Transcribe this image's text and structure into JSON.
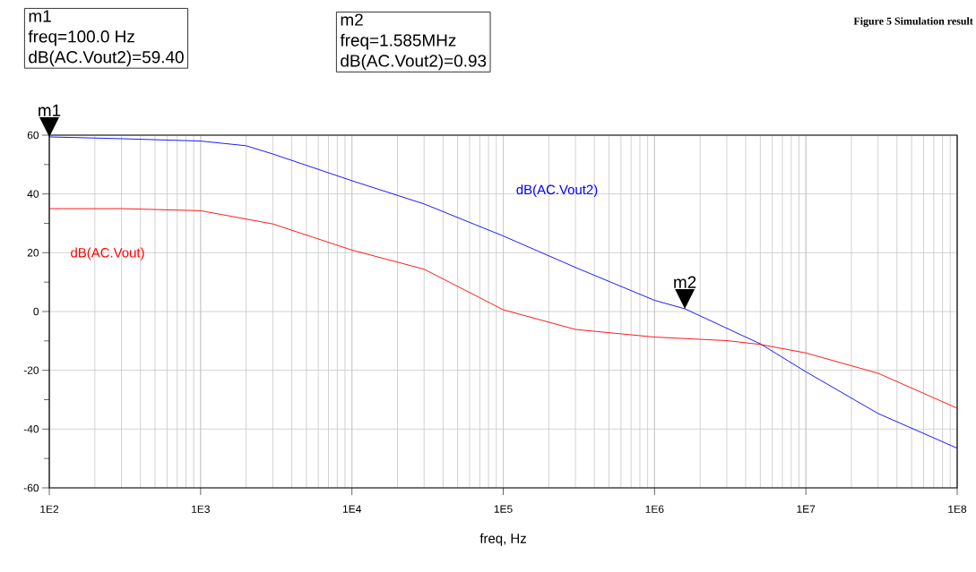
{
  "chart_data": {
    "type": "line",
    "xlabel": "freq, Hz",
    "log": "x",
    "grid": true,
    "legend": false,
    "marker": "none",
    "line_style": "solid",
    "xlim": [
      100,
      100000000
    ],
    "xticks": [
      {
        "value": 100,
        "label": "1E2"
      },
      {
        "value": 1000,
        "label": "1E3"
      },
      {
        "value": 10000,
        "label": "1E4"
      },
      {
        "value": 100000,
        "label": "1E5"
      },
      {
        "value": 1000000,
        "label": "1E6"
      },
      {
        "value": 10000000,
        "label": "1E7"
      },
      {
        "value": 100000000,
        "label": "1E8"
      }
    ],
    "ylim": [
      -60,
      60
    ],
    "yticks": [
      -60,
      {
        "value": -50,
        "label": null
      },
      -40,
      {
        "value": -30,
        "label": null
      },
      -20,
      {
        "value": -10,
        "label": null
      },
      0,
      {
        "value": 10,
        "label": null
      },
      20,
      {
        "value": 30,
        "label": null
      },
      40,
      {
        "value": 50,
        "label": null
      },
      60
    ],
    "series": [
      {
        "name": "dB(AC.Vout2)",
        "color": "#0000ff",
        "x": [
          100,
          300,
          1000,
          2000,
          3000,
          10000,
          30000,
          100000,
          300000,
          1000000,
          1585000,
          5000000,
          10000000,
          30000000,
          100000000
        ],
        "values": [
          59.4,
          58.8,
          58.0,
          56.4,
          53.6,
          44.5,
          36.6,
          25.7,
          15.0,
          3.8,
          0.93,
          -11.0,
          -20.5,
          -34.7,
          -46.5
        ]
      },
      {
        "name": "dB(AC.Vout)",
        "color": "#ff0000",
        "x": [
          100,
          300,
          1000,
          3000,
          10000,
          30000,
          100000,
          300000,
          1000000,
          3000000,
          5000000,
          10000000,
          30000000,
          100000000
        ],
        "values": [
          35.0,
          35.0,
          34.3,
          29.8,
          20.9,
          14.4,
          0.6,
          -6.1,
          -8.7,
          -9.9,
          -11.2,
          -14.1,
          -21.0,
          -32.9
        ]
      }
    ],
    "annotations": [
      "Figure 5 Simulation result",
      {
        "text": "m1",
        "x": 100,
        "y": 59.4
      },
      "m1",
      "freq=100.0 Hz",
      "dB(AC.Vout2)=59.40",
      {
        "text": "m2",
        "x": 1585000,
        "y": 0.93
      },
      "m2",
      "freq=1.585MHz",
      "dB(AC.Vout2)=0.93"
    ]
  }
}
